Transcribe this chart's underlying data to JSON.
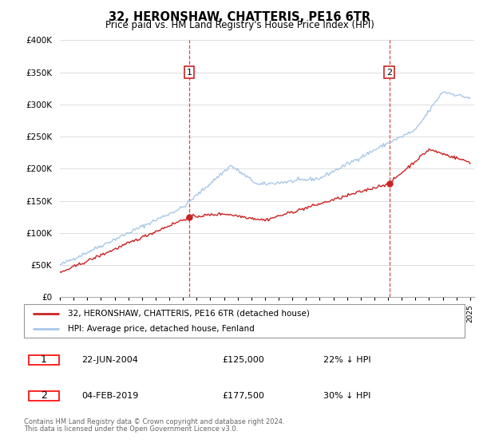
{
  "title": "32, HERONSHAW, CHATTERIS, PE16 6TR",
  "subtitle": "Price paid vs. HM Land Registry's House Price Index (HPI)",
  "ylim": [
    0,
    400000
  ],
  "yticks": [
    0,
    50000,
    100000,
    150000,
    200000,
    250000,
    300000,
    350000,
    400000
  ],
  "sale1_date": "22-JUN-2004",
  "sale1_price": 125000,
  "sale1_pct": "22% ↓ HPI",
  "sale1_year": 2004.47,
  "sale2_date": "04-FEB-2019",
  "sale2_price": 177500,
  "sale2_pct": "30% ↓ HPI",
  "sale2_year": 2019.09,
  "legend_property": "32, HERONSHAW, CHATTERIS, PE16 6TR (detached house)",
  "legend_hpi": "HPI: Average price, detached house, Fenland",
  "footer": "Contains HM Land Registry data © Crown copyright and database right 2024.\nThis data is licensed under the Open Government Licence v3.0.",
  "hpi_color": "#a8c8e8",
  "property_color": "#cc2222",
  "background_color": "#ffffff",
  "grid_color": "#dddddd"
}
